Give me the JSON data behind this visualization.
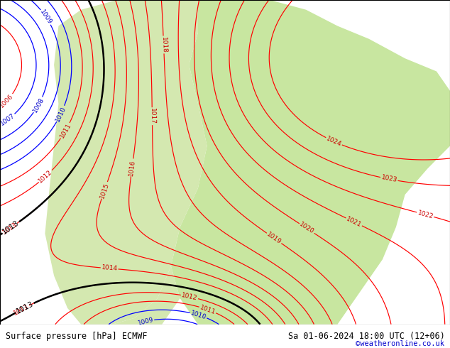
{
  "title_left": "Surface pressure [hPa] ECMWF",
  "title_right": "Sa 01-06-2024 18:00 UTC (12+06)",
  "credit": "©weatheronline.co.uk",
  "bg_color": "#ffffff",
  "map_bg_color": "#e8e8e0",
  "green_area_color": "#c8e6a0",
  "green_area_color2": "#d4e8b0",
  "blue_line_color": "#0000ff",
  "red_line_color": "#ff0000",
  "black_line_color": "#000000",
  "label_color_red": "#cc0000",
  "label_color_blue": "#0000cc",
  "label_color_black": "#000000",
  "figsize": [
    6.34,
    4.9
  ],
  "dpi": 100,
  "bottom_bar_color": "#c8e8c0",
  "bottom_bar_height": 0.068
}
